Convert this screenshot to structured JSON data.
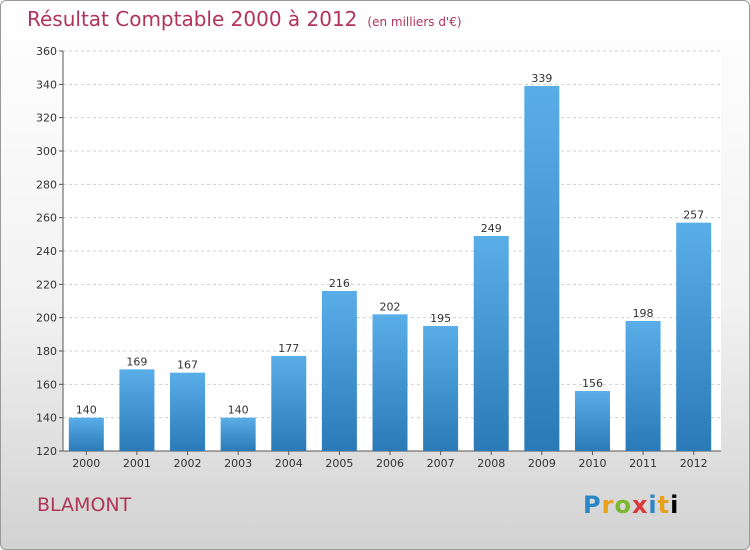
{
  "header": {
    "title": "Résultat Comptable 2000 à 2012",
    "subtitle": "(en milliers d'€)"
  },
  "footer": {
    "place": "BLAMONT",
    "logo": [
      "P",
      "r",
      "o",
      "x",
      "i",
      "t",
      "i"
    ]
  },
  "colors": {
    "bar_light": "#5aaee8",
    "bar_dark": "#2a7ab8",
    "title": "#b0345a"
  },
  "chart_data": {
    "type": "bar",
    "categories": [
      "2000",
      "2001",
      "2002",
      "2003",
      "2004",
      "2005",
      "2006",
      "2007",
      "2008",
      "2009",
      "2010",
      "2011",
      "2012"
    ],
    "values": [
      140,
      169,
      167,
      140,
      177,
      216,
      202,
      195,
      249,
      339,
      156,
      198,
      257
    ],
    "ylim": [
      120,
      360
    ],
    "yticks": [
      120,
      140,
      160,
      180,
      200,
      220,
      240,
      260,
      280,
      300,
      320,
      340,
      360
    ],
    "grid": true
  }
}
